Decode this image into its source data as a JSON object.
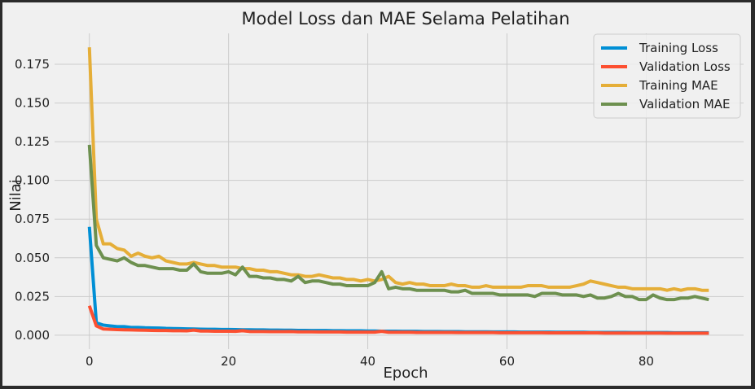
{
  "chart_data": {
    "type": "line",
    "title": "Model Loss dan MAE Selama Pelatihan",
    "xlabel": "Epoch",
    "ylabel": "Nilai",
    "xlim": [
      -5,
      94
    ],
    "ylim": [
      -0.009,
      0.195
    ],
    "xticks": [
      0,
      20,
      40,
      60,
      80
    ],
    "yticks": [
      0.0,
      0.025,
      0.05,
      0.075,
      0.1,
      0.125,
      0.15,
      0.175
    ],
    "ytick_labels": [
      "0.000",
      "0.025",
      "0.050",
      "0.075",
      "0.100",
      "0.125",
      "0.150",
      "0.175"
    ],
    "grid": true,
    "legend_position": "top-right",
    "series": [
      {
        "name": "Training Loss",
        "color": "#008fd5",
        "values": [
          0.07,
          0.008,
          0.0065,
          0.006,
          0.0055,
          0.0055,
          0.005,
          0.005,
          0.0048,
          0.0047,
          0.0046,
          0.0044,
          0.0043,
          0.0042,
          0.0041,
          0.004,
          0.0039,
          0.0038,
          0.0038,
          0.0037,
          0.0037,
          0.0036,
          0.0035,
          0.0035,
          0.0034,
          0.0034,
          0.0033,
          0.0033,
          0.0032,
          0.0032,
          0.0031,
          0.0031,
          0.003,
          0.003,
          0.003,
          0.0029,
          0.0029,
          0.0028,
          0.0028,
          0.0028,
          0.0027,
          0.0027,
          0.0026,
          0.0026,
          0.0026,
          0.0025,
          0.0025,
          0.0025,
          0.0024,
          0.0024,
          0.0024,
          0.0023,
          0.0023,
          0.0023,
          0.0022,
          0.0022,
          0.0022,
          0.0022,
          0.0021,
          0.0021,
          0.0021,
          0.0021,
          0.002,
          0.002,
          0.002,
          0.002,
          0.002,
          0.0019,
          0.0019,
          0.0019,
          0.0019,
          0.0019,
          0.0018,
          0.0018,
          0.0018,
          0.0018,
          0.0018,
          0.0018,
          0.0017,
          0.0017,
          0.0017,
          0.0017,
          0.0017,
          0.0017,
          0.0016,
          0.0016,
          0.0016,
          0.0016,
          0.0016,
          0.0016
        ]
      },
      {
        "name": "Validation Loss",
        "color": "#fc4f30",
        "values": [
          0.019,
          0.006,
          0.004,
          0.0038,
          0.0036,
          0.0035,
          0.0034,
          0.0033,
          0.0032,
          0.0031,
          0.003,
          0.003,
          0.0029,
          0.0029,
          0.0028,
          0.0033,
          0.0027,
          0.0027,
          0.0026,
          0.0026,
          0.0026,
          0.0025,
          0.0029,
          0.0024,
          0.0024,
          0.0024,
          0.0023,
          0.0023,
          0.0023,
          0.0024,
          0.0022,
          0.0022,
          0.0022,
          0.0021,
          0.0021,
          0.0021,
          0.0021,
          0.002,
          0.002,
          0.002,
          0.002,
          0.002,
          0.0025,
          0.0019,
          0.0019,
          0.0019,
          0.0019,
          0.0018,
          0.0018,
          0.0018,
          0.0018,
          0.0018,
          0.0018,
          0.0017,
          0.0017,
          0.0017,
          0.0017,
          0.0017,
          0.0017,
          0.0016,
          0.0016,
          0.0016,
          0.0016,
          0.0016,
          0.0016,
          0.0016,
          0.0015,
          0.0015,
          0.0015,
          0.0015,
          0.0015,
          0.0015,
          0.0015,
          0.0015,
          0.0014,
          0.0014,
          0.0014,
          0.0014,
          0.0014,
          0.0014,
          0.0014,
          0.0014,
          0.0014,
          0.0013,
          0.0013,
          0.0013,
          0.0013,
          0.0013,
          0.0013,
          0.0013
        ]
      },
      {
        "name": "Training MAE",
        "color": "#e5ae38",
        "values": [
          0.186,
          0.075,
          0.059,
          0.059,
          0.056,
          0.055,
          0.051,
          0.053,
          0.051,
          0.05,
          0.051,
          0.048,
          0.047,
          0.046,
          0.046,
          0.047,
          0.046,
          0.045,
          0.045,
          0.044,
          0.044,
          0.044,
          0.043,
          0.043,
          0.042,
          0.042,
          0.041,
          0.041,
          0.04,
          0.039,
          0.039,
          0.038,
          0.038,
          0.039,
          0.038,
          0.037,
          0.037,
          0.036,
          0.036,
          0.035,
          0.036,
          0.035,
          0.036,
          0.038,
          0.034,
          0.033,
          0.034,
          0.033,
          0.033,
          0.032,
          0.032,
          0.032,
          0.033,
          0.032,
          0.032,
          0.031,
          0.031,
          0.032,
          0.031,
          0.031,
          0.031,
          0.031,
          0.031,
          0.032,
          0.032,
          0.032,
          0.031,
          0.031,
          0.031,
          0.031,
          0.032,
          0.033,
          0.035,
          0.034,
          0.033,
          0.032,
          0.031,
          0.031,
          0.03,
          0.03,
          0.03,
          0.03,
          0.03,
          0.029,
          0.03,
          0.029,
          0.03,
          0.03,
          0.029,
          0.029
        ]
      },
      {
        "name": "Validation MAE",
        "color": "#6d904f",
        "values": [
          0.123,
          0.058,
          0.05,
          0.049,
          0.048,
          0.05,
          0.047,
          0.045,
          0.045,
          0.044,
          0.043,
          0.043,
          0.043,
          0.042,
          0.042,
          0.046,
          0.041,
          0.04,
          0.04,
          0.04,
          0.041,
          0.039,
          0.044,
          0.038,
          0.038,
          0.037,
          0.037,
          0.036,
          0.036,
          0.035,
          0.038,
          0.034,
          0.035,
          0.035,
          0.034,
          0.033,
          0.033,
          0.032,
          0.032,
          0.032,
          0.032,
          0.034,
          0.041,
          0.03,
          0.031,
          0.03,
          0.03,
          0.029,
          0.029,
          0.029,
          0.029,
          0.029,
          0.028,
          0.028,
          0.029,
          0.027,
          0.027,
          0.027,
          0.027,
          0.026,
          0.026,
          0.026,
          0.026,
          0.026,
          0.025,
          0.027,
          0.027,
          0.027,
          0.026,
          0.026,
          0.026,
          0.025,
          0.026,
          0.024,
          0.024,
          0.025,
          0.027,
          0.025,
          0.025,
          0.023,
          0.023,
          0.026,
          0.024,
          0.023,
          0.023,
          0.024,
          0.024,
          0.025,
          0.024,
          0.023
        ]
      }
    ]
  }
}
